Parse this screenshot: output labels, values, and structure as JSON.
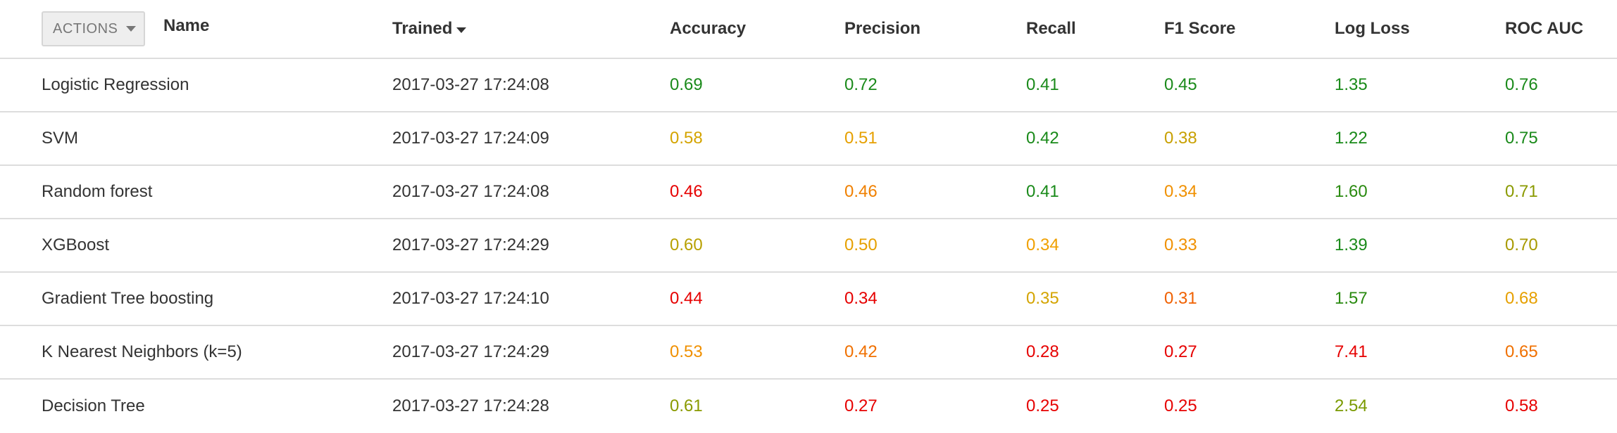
{
  "header": {
    "actions_label": "ACTIONS",
    "columns": {
      "name": "Name",
      "trained": "Trained",
      "accuracy": "Accuracy",
      "precision": "Precision",
      "recall": "Recall",
      "f1": "F1 Score",
      "log_loss": "Log Loss",
      "roc_auc": "ROC AUC"
    },
    "sort_column": "trained",
    "sort_direction": "descending"
  },
  "colors": {
    "green": "#1a8a1a",
    "olive": "#8a9a00",
    "yellow": "#d4a400",
    "orange": "#f08000",
    "red": "#e60000"
  },
  "rows": [
    {
      "name": "Logistic Regression",
      "trained": "2017-03-27 17:24:08",
      "accuracy": {
        "text": "0.69",
        "color": "#1a8a1a"
      },
      "precision": {
        "text": "0.72",
        "color": "#1a8a1a"
      },
      "recall": {
        "text": "0.41",
        "color": "#1a8a1a"
      },
      "f1": {
        "text": "0.45",
        "color": "#1a8a1a"
      },
      "log_loss": {
        "text": "1.35",
        "color": "#1a8a1a"
      },
      "roc_auc": {
        "text": "0.76",
        "color": "#1a8a1a"
      }
    },
    {
      "name": "SVM",
      "trained": "2017-03-27 17:24:09",
      "accuracy": {
        "text": "0.58",
        "color": "#d4a400"
      },
      "precision": {
        "text": "0.51",
        "color": "#e6a000"
      },
      "recall": {
        "text": "0.42",
        "color": "#1a8a1a"
      },
      "f1": {
        "text": "0.38",
        "color": "#c8a000"
      },
      "log_loss": {
        "text": "1.22",
        "color": "#1a8a1a"
      },
      "roc_auc": {
        "text": "0.75",
        "color": "#1a8a1a"
      }
    },
    {
      "name": "Random forest",
      "trained": "2017-03-27 17:24:08",
      "accuracy": {
        "text": "0.46",
        "color": "#e60000"
      },
      "precision": {
        "text": "0.46",
        "color": "#f08000"
      },
      "recall": {
        "text": "0.41",
        "color": "#1a8a1a"
      },
      "f1": {
        "text": "0.34",
        "color": "#f09000"
      },
      "log_loss": {
        "text": "1.60",
        "color": "#2a8a10"
      },
      "roc_auc": {
        "text": "0.71",
        "color": "#8a9a00"
      }
    },
    {
      "name": "XGBoost",
      "trained": "2017-03-27 17:24:29",
      "accuracy": {
        "text": "0.60",
        "color": "#b8a000"
      },
      "precision": {
        "text": "0.50",
        "color": "#e6a000"
      },
      "recall": {
        "text": "0.34",
        "color": "#f0a000"
      },
      "f1": {
        "text": "0.33",
        "color": "#f09000"
      },
      "log_loss": {
        "text": "1.39",
        "color": "#1a8a1a"
      },
      "roc_auc": {
        "text": "0.70",
        "color": "#a89a00"
      }
    },
    {
      "name": "Gradient Tree boosting",
      "trained": "2017-03-27 17:24:10",
      "accuracy": {
        "text": "0.44",
        "color": "#e60000"
      },
      "precision": {
        "text": "0.34",
        "color": "#e60000"
      },
      "recall": {
        "text": "0.35",
        "color": "#d4a400"
      },
      "f1": {
        "text": "0.31",
        "color": "#f06000"
      },
      "log_loss": {
        "text": "1.57",
        "color": "#2a8a10"
      },
      "roc_auc": {
        "text": "0.68",
        "color": "#e6a000"
      }
    },
    {
      "name": "K Nearest Neighbors (k=5)",
      "trained": "2017-03-27 17:24:29",
      "accuracy": {
        "text": "0.53",
        "color": "#f09000"
      },
      "precision": {
        "text": "0.42",
        "color": "#f07000"
      },
      "recall": {
        "text": "0.28",
        "color": "#e60000"
      },
      "f1": {
        "text": "0.27",
        "color": "#e60000"
      },
      "log_loss": {
        "text": "7.41",
        "color": "#e60000"
      },
      "roc_auc": {
        "text": "0.65",
        "color": "#f07000"
      }
    },
    {
      "name": "Decision Tree",
      "trained": "2017-03-27 17:24:28",
      "accuracy": {
        "text": "0.61",
        "color": "#8a9a00"
      },
      "precision": {
        "text": "0.27",
        "color": "#e60000"
      },
      "recall": {
        "text": "0.25",
        "color": "#e60000"
      },
      "f1": {
        "text": "0.25",
        "color": "#e60000"
      },
      "log_loss": {
        "text": "2.54",
        "color": "#7a9a00"
      },
      "roc_auc": {
        "text": "0.58",
        "color": "#e60000"
      }
    }
  ]
}
